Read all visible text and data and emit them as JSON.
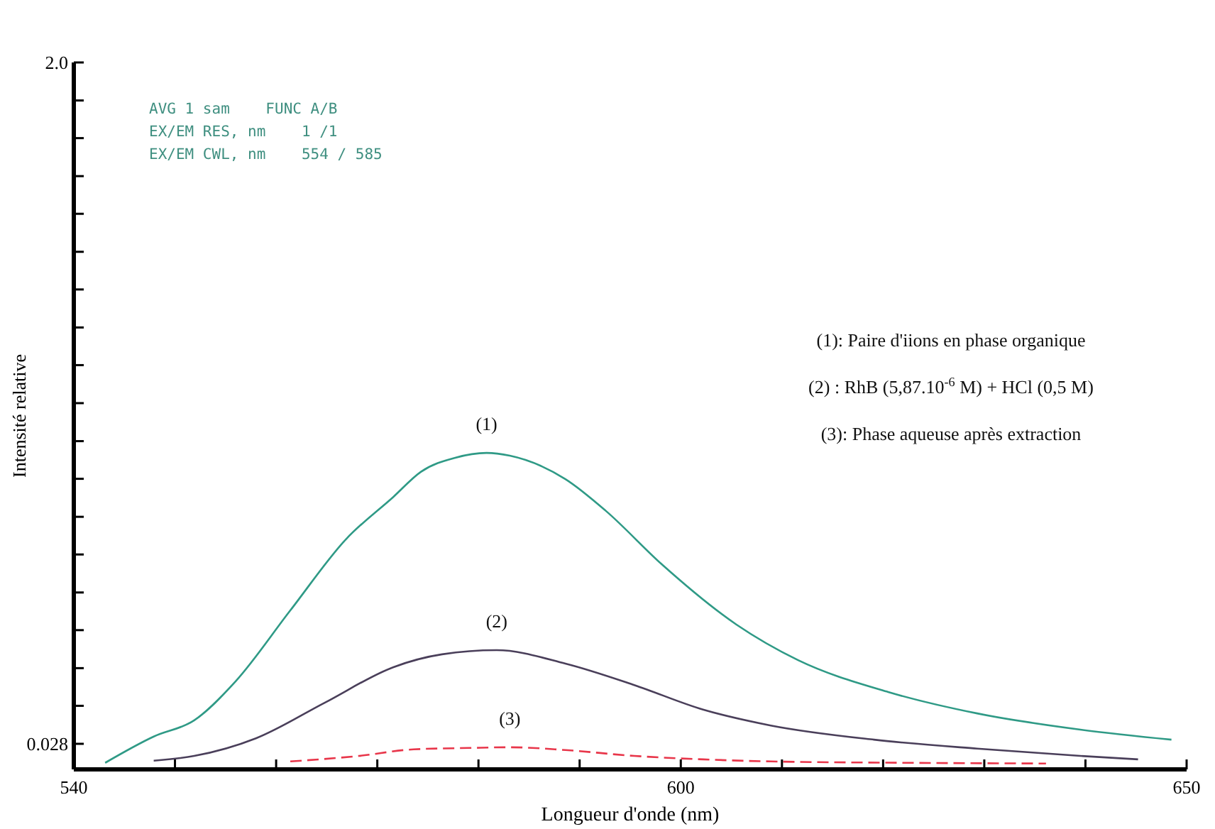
{
  "chart_data": {
    "type": "line",
    "xlabel": "Longueur d'onde (nm)",
    "ylabel": "Intensité relative",
    "xlim": [
      540,
      650
    ],
    "xticks": [
      540,
      {
        "value": 550,
        "label": null
      },
      {
        "value": 560,
        "label": null
      },
      {
        "value": 570,
        "label": null
      },
      {
        "value": 580,
        "label": null
      },
      {
        "value": 590,
        "label": null
      },
      600,
      {
        "value": 610,
        "label": null
      },
      {
        "value": 620,
        "label": null
      },
      {
        "value": 630,
        "label": null
      },
      {
        "value": 640,
        "label": null
      },
      650
    ],
    "ylim": [
      -0.046,
      2.0
    ],
    "yticks": [
      0.028,
      {
        "value": 0.138,
        "label": null
      },
      {
        "value": 0.247,
        "label": null
      },
      {
        "value": 0.357,
        "label": null
      },
      {
        "value": 0.466,
        "label": null
      },
      {
        "value": 0.576,
        "label": null
      },
      {
        "value": 0.685,
        "label": null
      },
      {
        "value": 0.795,
        "label": null
      },
      {
        "value": 0.904,
        "label": null
      },
      {
        "value": 1.014,
        "label": null
      },
      {
        "value": 1.124,
        "label": null
      },
      {
        "value": 1.233,
        "label": null
      },
      {
        "value": 1.343,
        "label": null
      },
      {
        "value": 1.452,
        "label": null
      },
      {
        "value": 1.562,
        "label": null
      },
      {
        "value": 1.671,
        "label": null
      },
      {
        "value": 1.781,
        "label": null
      },
      {
        "value": 1.89,
        "label": null
      },
      {
        "value": 2.0,
        "label": "2.0"
      }
    ],
    "grid": false,
    "series": [
      {
        "name": "(1)",
        "color": "#2f9a86",
        "line_style": "solid",
        "x": [
          543.1,
          547.9,
          551.9,
          556.0,
          561.4,
          566.9,
          571.6,
          574.3,
          577.7,
          580.8,
          583.1,
          588.6,
          592.6,
          598.1,
          605.5,
          611.6,
          620.5,
          629.3,
          639.5,
          648.5
        ],
        "values": [
          -0.027,
          0.049,
          0.096,
          0.209,
          0.414,
          0.62,
          0.743,
          0.815,
          0.856,
          0.87,
          0.862,
          0.794,
          0.702,
          0.548,
          0.373,
          0.27,
          0.178,
          0.116,
          0.069,
          0.04
        ]
      },
      {
        "name": "(2)",
        "color": "#4a3f5a",
        "line_style": "solid",
        "x": [
          547.9,
          551.9,
          558.0,
          564.8,
          571.6,
          576.4,
          581.8,
          588.6,
          595.4,
          602.2,
          608.9,
          619.1,
          629.3,
          639.5,
          645.2
        ],
        "values": [
          -0.021,
          -0.007,
          0.044,
          0.147,
          0.25,
          0.287,
          0.299,
          0.26,
          0.198,
          0.127,
          0.081,
          0.04,
          0.014,
          -0.007,
          -0.017
        ]
      },
      {
        "name": "(3)",
        "color": "#e8364a",
        "line_style": "dashed",
        "x": [
          561.4,
          568.2,
          573.6,
          579.1,
          583.1,
          588.6,
          595.4,
          602.2,
          608.9,
          622.5,
          636.1
        ],
        "values": [
          -0.023,
          -0.007,
          0.012,
          0.016,
          0.018,
          0.01,
          -0.007,
          -0.017,
          -0.023,
          -0.027,
          -0.029
        ]
      }
    ],
    "annotations": [
      "AVG 1 sam    FUNC A/B",
      "EX/EM RES, nm    1 /1",
      "EX/EM CWL, nm    554 / 585",
      "(1): Paire d'iions en phase organique",
      "(2) : RhB (5,87.10$^{-6}$ M) + HCl (0,5 M)",
      "(3): Phase aqueuse après extraction"
    ]
  }
}
